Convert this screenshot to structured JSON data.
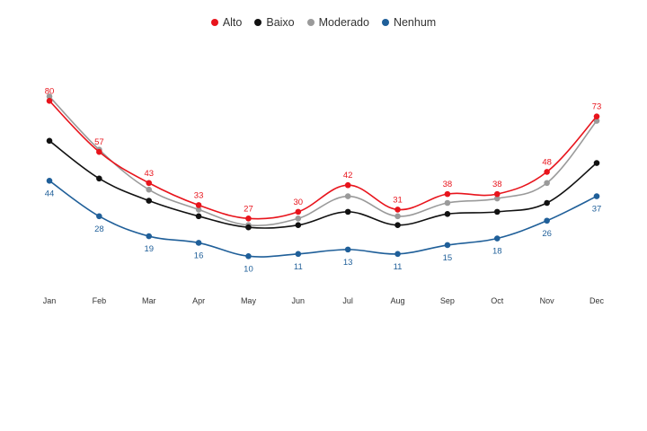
{
  "chart_data": {
    "type": "line",
    "title": "",
    "xlabel": "",
    "ylabel": "",
    "categories": [
      "Jan",
      "Feb",
      "Mar",
      "Apr",
      "May",
      "Jun",
      "Jul",
      "Aug",
      "Sep",
      "Oct",
      "Nov",
      "Dec"
    ],
    "legend_position": "top-center",
    "grid": false,
    "ylim": [
      0,
      85
    ],
    "series": [
      {
        "name": "Alto",
        "color": "#e8141c",
        "show_labels": true,
        "label_position": "above",
        "values": [
          80,
          57,
          43,
          33,
          27,
          30,
          42,
          31,
          38,
          38,
          48,
          73
        ]
      },
      {
        "name": "Baixo",
        "color": "#111111",
        "show_labels": false,
        "values": [
          62,
          45,
          35,
          28,
          23,
          24,
          30,
          24,
          29,
          30,
          34,
          52
        ]
      },
      {
        "name": "Moderado",
        "color": "#9a9a9a",
        "show_labels": false,
        "values": [
          82,
          58,
          40,
          31,
          24,
          27,
          37,
          28,
          34,
          36,
          43,
          71
        ]
      },
      {
        "name": "Nenhum",
        "color": "#1f5f99",
        "show_labels": true,
        "label_position": "below",
        "values": [
          44,
          28,
          19,
          16,
          10,
          11,
          13,
          11,
          15,
          18,
          26,
          37
        ]
      }
    ]
  }
}
